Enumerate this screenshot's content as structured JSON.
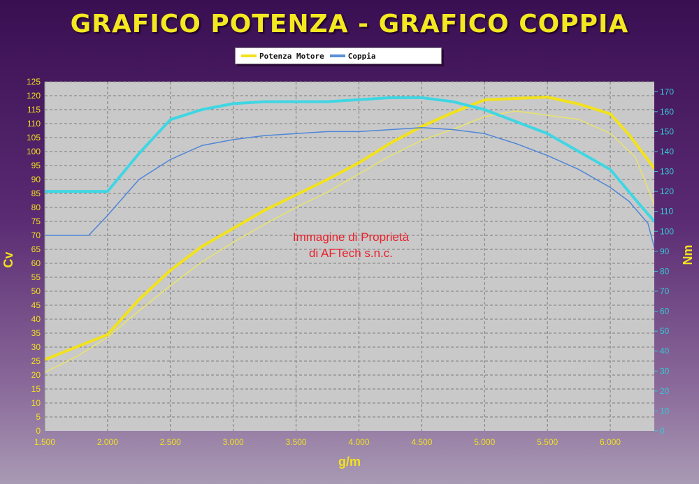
{
  "title": "GRAFICO POTENZA - GRAFICO COPPIA",
  "watermark": [
    "Immagine di Proprietà",
    "di AFTech s.n.c."
  ],
  "colors": {
    "power": "#f2e21c",
    "power_thin": "#e9e46a",
    "torque_legend": "#5b8fd6",
    "torque_thick": "#3fd6e3",
    "torque_thin": "#4f86d8",
    "left_axis": "#f2e21c",
    "right_axis": "#36c9d6",
    "plot_bg": "#c9c9c9",
    "watermark": "#e8202a"
  },
  "chart_data": {
    "type": "line",
    "title": "GRAFICO POTENZA - GRAFICO COPPIA",
    "xlabel": "g/m",
    "ylabel_left": "Cv",
    "ylabel_right": "Nm",
    "xlim": [
      1500,
      6350
    ],
    "ylim_left": [
      0,
      125
    ],
    "ylim_right": [
      0,
      175
    ],
    "x_ticks": [
      1500,
      2000,
      2500,
      3000,
      3500,
      4000,
      4500,
      5000,
      5500,
      6000
    ],
    "x_tick_labels": [
      "1.500",
      "2.000",
      "2.500",
      "3.000",
      "3.500",
      "4.000",
      "4.500",
      "5.000",
      "5.500",
      "6.000"
    ],
    "y_left_ticks": [
      0,
      5,
      10,
      15,
      20,
      25,
      30,
      35,
      40,
      45,
      50,
      55,
      60,
      65,
      70,
      75,
      80,
      85,
      90,
      95,
      100,
      105,
      110,
      115,
      120,
      125
    ],
    "y_right_ticks": [
      0,
      10,
      20,
      30,
      40,
      50,
      60,
      70,
      80,
      90,
      100,
      110,
      120,
      130,
      140,
      150,
      160,
      170
    ],
    "grid": true,
    "legend": {
      "placement": "top-center",
      "entries": [
        {
          "label": "Potenza Motore",
          "color": "#f2e21c"
        },
        {
          "label": "Coppia",
          "color": "#5b8fd6"
        }
      ]
    },
    "series": [
      {
        "name": "Potenza Motore",
        "axis": "left",
        "color": "#f2e21c",
        "width": 4,
        "x": [
          1500,
          1750,
          2000,
          2250,
          2500,
          2750,
          3000,
          3250,
          3500,
          3750,
          4000,
          4250,
          4500,
          4750,
          5000,
          5250,
          5500,
          5750,
          6000,
          6150,
          6350
        ],
        "y": [
          25.5,
          30,
          34.5,
          47,
          57.5,
          66,
          72.5,
          79,
          84.5,
          90,
          96,
          103,
          109,
          114,
          118.5,
          119,
          119.5,
          117,
          113.5,
          106,
          94
        ]
      },
      {
        "axis": "left",
        "color": "#e9e46a",
        "width": 1.5,
        "x": [
          1500,
          1750,
          2000,
          2250,
          2500,
          2750,
          3000,
          3250,
          3500,
          3750,
          4000,
          4250,
          4500,
          4750,
          5000,
          5250,
          5500,
          5750,
          6000,
          6200,
          6350
        ],
        "y": [
          21,
          26.5,
          33.5,
          43,
          52,
          60.5,
          67.5,
          74,
          80,
          85.5,
          92,
          98.5,
          104,
          108,
          112.5,
          114.5,
          113,
          111.5,
          106.5,
          98,
          81
        ]
      },
      {
        "name": "Coppia",
        "axis": "right",
        "color": "#3fd6e3",
        "width": 4,
        "x": [
          1500,
          1750,
          2000,
          2250,
          2500,
          2750,
          3000,
          3250,
          3500,
          3750,
          4000,
          4250,
          4500,
          4750,
          5000,
          5250,
          5500,
          5750,
          6000,
          6200,
          6350
        ],
        "y": [
          120,
          120,
          120,
          139,
          156,
          161,
          164,
          165,
          165,
          165,
          166,
          167,
          167,
          165,
          161,
          155,
          149,
          140,
          131,
          116,
          105
        ]
      },
      {
        "axis": "right",
        "color": "#4f86d8",
        "width": 1.5,
        "x": [
          1500,
          1700,
          1850,
          2000,
          2250,
          2500,
          2750,
          3000,
          3250,
          3500,
          3750,
          4000,
          4250,
          4500,
          4750,
          5000,
          5250,
          5500,
          5750,
          6000,
          6150,
          6300,
          6350
        ],
        "y": [
          98,
          98,
          98,
          108,
          126,
          136,
          143,
          146,
          148,
          149,
          150,
          150,
          151,
          152,
          151,
          149,
          144,
          138,
          131,
          122,
          115,
          104,
          92
        ]
      }
    ]
  }
}
